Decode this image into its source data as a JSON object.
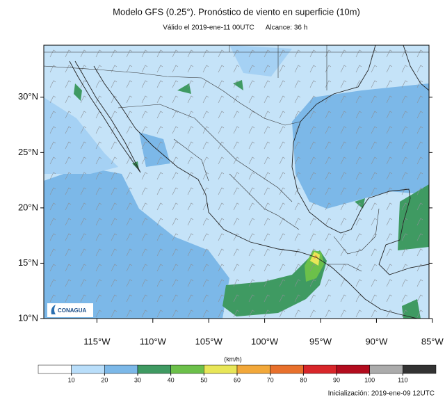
{
  "title": "Modelo GFS (0.25°). Pronóstico de viento en superficie (10m)",
  "valid": "Válido el 2019-ene-11 00UTC",
  "range": "Alcance: 36 h",
  "map": {
    "lonlim": [
      -119.75,
      -85.3
    ],
    "latlim": [
      10,
      34.7
    ],
    "lat_ticks": [
      {
        "value": 10,
        "label": "10°N"
      },
      {
        "value": 15,
        "label": "15°N"
      },
      {
        "value": 20,
        "label": "20°N"
      },
      {
        "value": 25,
        "label": "25°N"
      },
      {
        "value": 30,
        "label": "30°N"
      }
    ],
    "lon_ticks": [
      {
        "value": -115,
        "label": "115°W"
      },
      {
        "value": -110,
        "label": "110°W"
      },
      {
        "value": -105,
        "label": "105°W"
      },
      {
        "value": -100,
        "label": "100°W"
      },
      {
        "value": -95,
        "label": "95°W"
      },
      {
        "value": -90,
        "label": "90°W"
      },
      {
        "value": -85,
        "label": "85°W"
      }
    ]
  },
  "logo": "CONAGUA",
  "colorbar": {
    "unit": "(km/h)",
    "ticks": [
      10,
      20,
      30,
      40,
      50,
      60,
      70,
      80,
      90,
      100,
      110
    ],
    "colors": [
      "#ffffff",
      "#b9defa",
      "#7cb8e8",
      "#3f9a62",
      "#6cc04a",
      "#e8e658",
      "#f2a83a",
      "#e8702c",
      "#d8262a",
      "#b30c1e",
      "#ababab",
      "#333333"
    ]
  },
  "footer": "Inicialización: 2019-ene-09 12UTC"
}
